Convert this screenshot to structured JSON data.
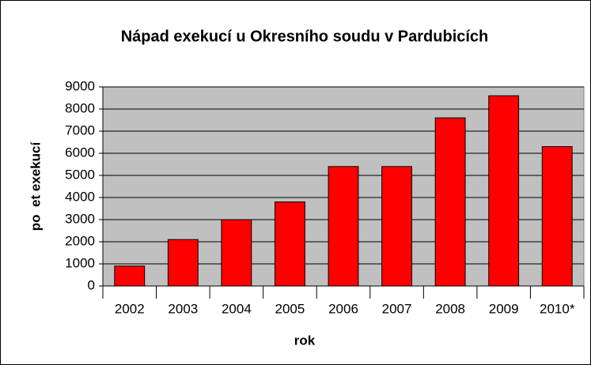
{
  "chart_data": {
    "type": "bar",
    "title": "Nápad exekucí u Okresního soudu v Pardubicích",
    "x_label": "rok",
    "y_label": "po  et exekucí",
    "categories": [
      "2002",
      "2003",
      "2004",
      "2005",
      "2006",
      "2007",
      "2008",
      "2009",
      "2010*"
    ],
    "values": [
      900,
      2100,
      3000,
      3800,
      5400,
      5400,
      7600,
      8600,
      6300
    ],
    "color": "#ff0000",
    "ylim": [
      0,
      9000
    ],
    "yticks": [
      0,
      1000,
      2000,
      3000,
      4000,
      5000,
      6000,
      7000,
      8000,
      9000
    ],
    "grid": true
  }
}
